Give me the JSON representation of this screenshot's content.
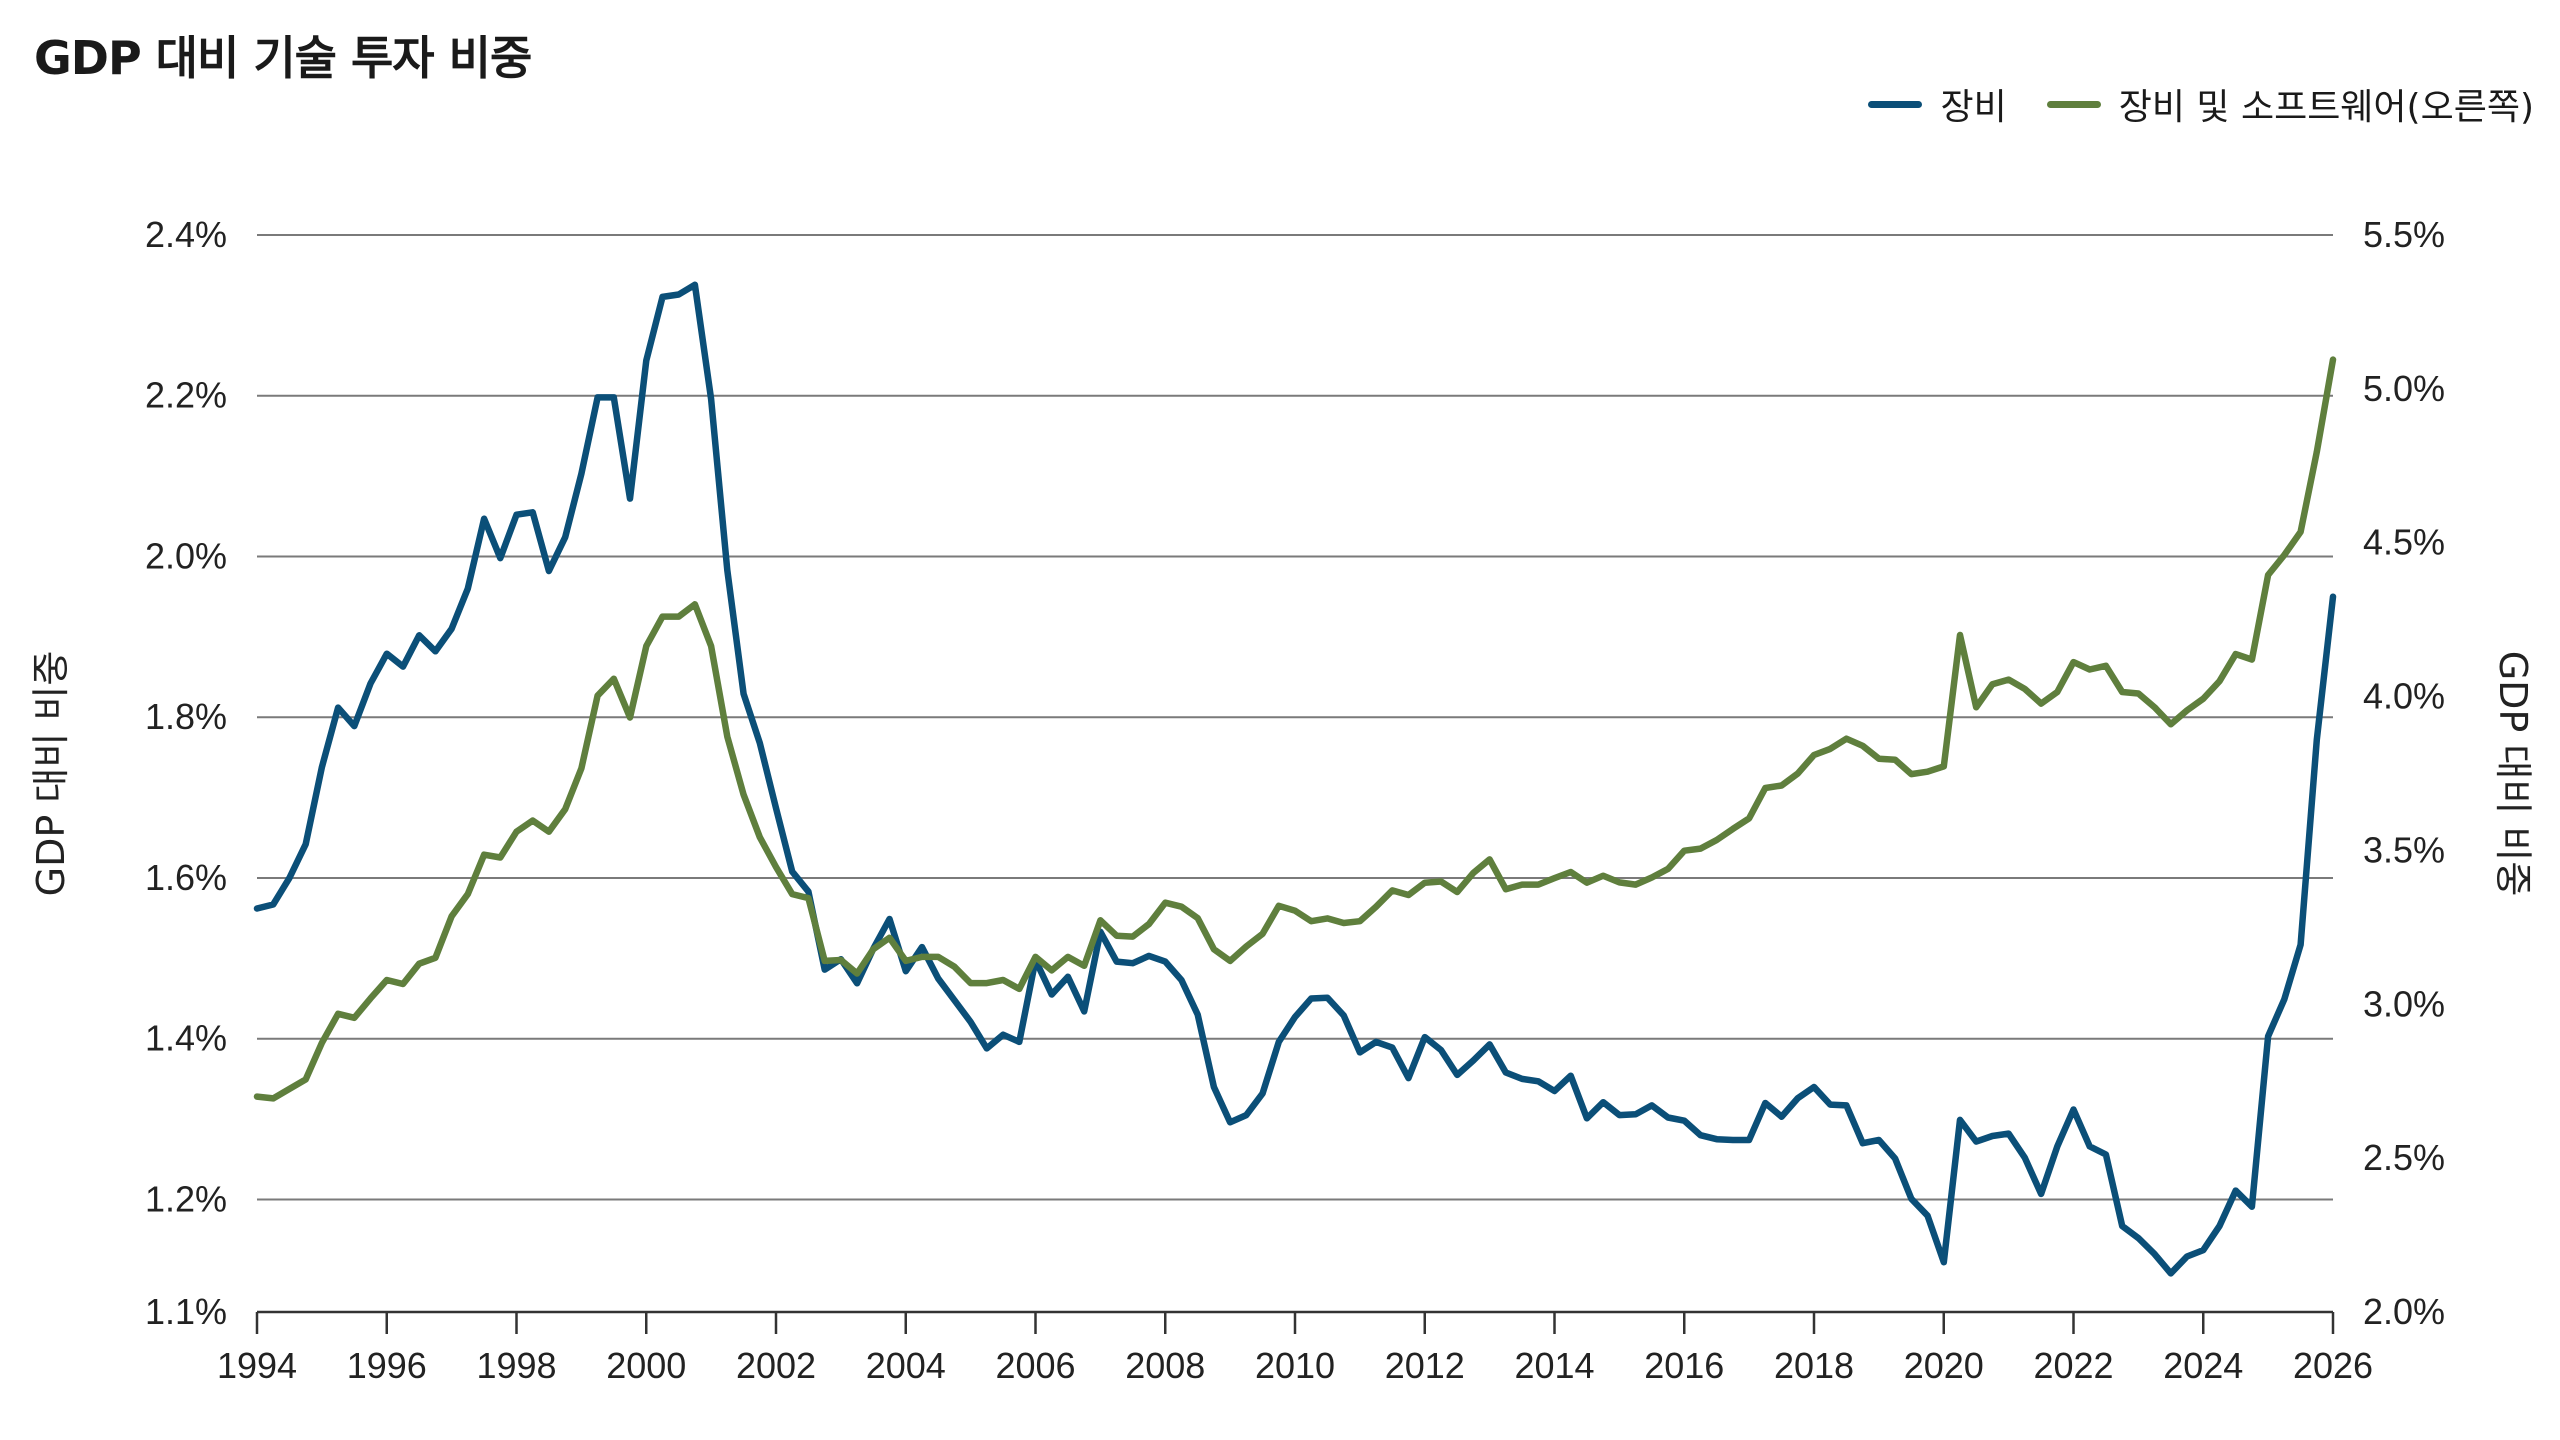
{
  "chart_data": {
    "type": "line",
    "title": "GDP 대비 기술 투자 비중",
    "ylabel_left": "GDP 대비 비중",
    "ylabel_right": "GDP 대비 비중",
    "x_ticks": [
      "1994",
      "1996",
      "1998",
      "2000",
      "2002",
      "2004",
      "2006",
      "2008",
      "2010",
      "2012",
      "2014",
      "2016",
      "2018",
      "2020",
      "2022",
      "2024",
      "2026"
    ],
    "xlim": [
      1994,
      2026
    ],
    "left_axis": {
      "ticks": [
        "1.1%",
        "1.2%",
        "1.4%",
        "1.6%",
        "1.8%",
        "2.0%",
        "2.2%",
        "2.4%"
      ],
      "tick_values": [
        1.06,
        1.2,
        1.4,
        1.6,
        1.8,
        2.0,
        2.2,
        2.4
      ],
      "ylim": [
        1.06,
        2.4
      ]
    },
    "right_axis": {
      "ticks": [
        "2.0%",
        "2.5%",
        "3.0%",
        "3.5%",
        "4.0%",
        "4.5%",
        "5.0%",
        "5.5%"
      ],
      "tick_values": [
        2.0,
        2.5,
        3.0,
        3.5,
        4.0,
        4.5,
        5.0,
        5.5
      ],
      "ylim": [
        2.0,
        5.5
      ]
    },
    "grid": true,
    "legend_position": "top-right",
    "series": [
      {
        "name": "장비",
        "axis": "left",
        "color": "#0b4f78",
        "points": [
          [
            1994.0,
            1.562
          ],
          [
            1994.25,
            1.567
          ],
          [
            1994.5,
            1.6
          ],
          [
            1994.75,
            1.642
          ],
          [
            1995.0,
            1.738
          ],
          [
            1995.25,
            1.812
          ],
          [
            1995.5,
            1.789
          ],
          [
            1995.75,
            1.842
          ],
          [
            1996.0,
            1.879
          ],
          [
            1996.25,
            1.863
          ],
          [
            1996.5,
            1.902
          ],
          [
            1996.75,
            1.882
          ],
          [
            1997.0,
            1.91
          ],
          [
            1997.25,
            1.96
          ],
          [
            1997.5,
            2.047
          ],
          [
            1997.75,
            1.998
          ],
          [
            1998.0,
            2.052
          ],
          [
            1998.25,
            2.055
          ],
          [
            1998.5,
            1.982
          ],
          [
            1998.75,
            2.024
          ],
          [
            1999.0,
            2.103
          ],
          [
            1999.25,
            2.198
          ],
          [
            1999.5,
            2.198
          ],
          [
            1999.75,
            2.072
          ],
          [
            2000.0,
            2.244
          ],
          [
            2000.25,
            2.323
          ],
          [
            2000.5,
            2.326
          ],
          [
            2000.75,
            2.338
          ],
          [
            2001.0,
            2.196
          ],
          [
            2001.25,
            1.983
          ],
          [
            2001.5,
            1.829
          ],
          [
            2001.75,
            1.768
          ],
          [
            2002.0,
            1.687
          ],
          [
            2002.25,
            1.608
          ],
          [
            2002.5,
            1.583
          ],
          [
            2002.75,
            1.486
          ],
          [
            2003.0,
            1.499
          ],
          [
            2003.25,
            1.469
          ],
          [
            2003.5,
            1.512
          ],
          [
            2003.75,
            1.549
          ],
          [
            2004.0,
            1.484
          ],
          [
            2004.25,
            1.514
          ],
          [
            2004.5,
            1.475
          ],
          [
            2004.75,
            1.448
          ],
          [
            2005.0,
            1.421
          ],
          [
            2005.25,
            1.388
          ],
          [
            2005.5,
            1.405
          ],
          [
            2005.75,
            1.396
          ],
          [
            2006.0,
            1.498
          ],
          [
            2006.25,
            1.455
          ],
          [
            2006.5,
            1.477
          ],
          [
            2006.75,
            1.434
          ],
          [
            2007.0,
            1.533
          ],
          [
            2007.25,
            1.496
          ],
          [
            2007.5,
            1.494
          ],
          [
            2007.75,
            1.503
          ],
          [
            2008.0,
            1.496
          ],
          [
            2008.25,
            1.473
          ],
          [
            2008.5,
            1.43
          ],
          [
            2008.75,
            1.34
          ],
          [
            2009.0,
            1.296
          ],
          [
            2009.25,
            1.305
          ],
          [
            2009.5,
            1.332
          ],
          [
            2009.75,
            1.396
          ],
          [
            2010.0,
            1.427
          ],
          [
            2010.25,
            1.45
          ],
          [
            2010.5,
            1.451
          ],
          [
            2010.75,
            1.429
          ],
          [
            2011.0,
            1.383
          ],
          [
            2011.25,
            1.396
          ],
          [
            2011.5,
            1.389
          ],
          [
            2011.75,
            1.351
          ],
          [
            2012.0,
            1.402
          ],
          [
            2012.25,
            1.386
          ],
          [
            2012.5,
            1.355
          ],
          [
            2012.75,
            1.373
          ],
          [
            2013.0,
            1.393
          ],
          [
            2013.25,
            1.358
          ],
          [
            2013.5,
            1.35
          ],
          [
            2013.75,
            1.347
          ],
          [
            2014.0,
            1.335
          ],
          [
            2014.25,
            1.354
          ],
          [
            2014.5,
            1.301
          ],
          [
            2014.75,
            1.321
          ],
          [
            2015.0,
            1.305
          ],
          [
            2015.25,
            1.306
          ],
          [
            2015.5,
            1.317
          ],
          [
            2015.75,
            1.302
          ],
          [
            2016.0,
            1.298
          ],
          [
            2016.25,
            1.28
          ],
          [
            2016.5,
            1.275
          ],
          [
            2016.75,
            1.274
          ],
          [
            2017.0,
            1.274
          ],
          [
            2017.25,
            1.32
          ],
          [
            2017.5,
            1.303
          ],
          [
            2017.75,
            1.326
          ],
          [
            2018.0,
            1.34
          ],
          [
            2018.25,
            1.318
          ],
          [
            2018.5,
            1.317
          ],
          [
            2018.75,
            1.27
          ],
          [
            2019.0,
            1.274
          ],
          [
            2019.25,
            1.251
          ],
          [
            2019.5,
            1.201
          ],
          [
            2019.75,
            1.18
          ],
          [
            2020.0,
            1.122
          ],
          [
            2020.25,
            1.299
          ],
          [
            2020.5,
            1.272
          ],
          [
            2020.75,
            1.279
          ],
          [
            2021.0,
            1.282
          ],
          [
            2021.25,
            1.252
          ],
          [
            2021.5,
            1.207
          ],
          [
            2021.75,
            1.266
          ],
          [
            2022.0,
            1.312
          ],
          [
            2022.25,
            1.266
          ],
          [
            2022.5,
            1.256
          ],
          [
            2022.75,
            1.167
          ],
          [
            2023.0,
            1.152
          ],
          [
            2023.25,
            1.132
          ],
          [
            2023.5,
            1.108
          ],
          [
            2023.75,
            1.129
          ],
          [
            2024.0,
            1.137
          ],
          [
            2024.25,
            1.167
          ],
          [
            2024.5,
            1.211
          ],
          [
            2024.75,
            1.191
          ],
          [
            2025.0,
            1.403
          ],
          [
            2025.25,
            1.449
          ],
          [
            2025.5,
            1.517
          ],
          [
            2025.75,
            1.772
          ],
          [
            2026.0,
            1.95
          ]
        ]
      },
      {
        "name": "장비 및 소프트웨어(오른쪽)",
        "axis": "right",
        "color": "#5f7f3d",
        "points": [
          [
            1994.0,
            2.7
          ],
          [
            1994.25,
            2.694
          ],
          [
            1994.5,
            2.725
          ],
          [
            1994.75,
            2.756
          ],
          [
            1995.0,
            2.875
          ],
          [
            1995.25,
            2.969
          ],
          [
            1995.5,
            2.956
          ],
          [
            1995.75,
            3.019
          ],
          [
            1996.0,
            3.079
          ],
          [
            1996.25,
            3.066
          ],
          [
            1996.5,
            3.132
          ],
          [
            1996.75,
            3.151
          ],
          [
            1997.0,
            3.286
          ],
          [
            1997.25,
            3.358
          ],
          [
            1997.5,
            3.486
          ],
          [
            1997.75,
            3.477
          ],
          [
            1998.0,
            3.561
          ],
          [
            1998.25,
            3.597
          ],
          [
            1998.5,
            3.561
          ],
          [
            1998.75,
            3.634
          ],
          [
            1999.0,
            3.767
          ],
          [
            1999.25,
            4.003
          ],
          [
            1999.5,
            4.058
          ],
          [
            1999.75,
            3.932
          ],
          [
            2000.0,
            4.164
          ],
          [
            2000.25,
            4.26
          ],
          [
            2000.5,
            4.26
          ],
          [
            2000.75,
            4.3
          ],
          [
            2001.0,
            4.164
          ],
          [
            2001.25,
            3.87
          ],
          [
            2001.5,
            3.681
          ],
          [
            2001.75,
            3.543
          ],
          [
            2002.0,
            3.446
          ],
          [
            2002.25,
            3.358
          ],
          [
            2002.5,
            3.345
          ],
          [
            2002.75,
            3.141
          ],
          [
            2003.0,
            3.144
          ],
          [
            2003.25,
            3.1
          ],
          [
            2003.5,
            3.179
          ],
          [
            2003.75,
            3.216
          ],
          [
            2004.0,
            3.141
          ],
          [
            2004.25,
            3.154
          ],
          [
            2004.5,
            3.154
          ],
          [
            2004.75,
            3.122
          ],
          [
            2005.0,
            3.069
          ],
          [
            2005.25,
            3.069
          ],
          [
            2005.5,
            3.079
          ],
          [
            2005.75,
            3.05
          ],
          [
            2006.0,
            3.154
          ],
          [
            2006.25,
            3.11
          ],
          [
            2006.5,
            3.154
          ],
          [
            2006.75,
            3.125
          ],
          [
            2007.0,
            3.273
          ],
          [
            2007.25,
            3.223
          ],
          [
            2007.5,
            3.22
          ],
          [
            2007.75,
            3.261
          ],
          [
            2008.0,
            3.33
          ],
          [
            2008.25,
            3.317
          ],
          [
            2008.5,
            3.28
          ],
          [
            2008.75,
            3.179
          ],
          [
            2009.0,
            3.141
          ],
          [
            2009.25,
            3.188
          ],
          [
            2009.5,
            3.229
          ],
          [
            2009.75,
            3.32
          ],
          [
            2010.0,
            3.304
          ],
          [
            2010.25,
            3.27
          ],
          [
            2010.5,
            3.279
          ],
          [
            2010.75,
            3.264
          ],
          [
            2011.0,
            3.27
          ],
          [
            2011.25,
            3.317
          ],
          [
            2011.5,
            3.37
          ],
          [
            2011.75,
            3.355
          ],
          [
            2012.0,
            3.395
          ],
          [
            2012.25,
            3.399
          ],
          [
            2012.5,
            3.365
          ],
          [
            2012.75,
            3.427
          ],
          [
            2013.0,
            3.471
          ],
          [
            2013.25,
            3.374
          ],
          [
            2013.5,
            3.389
          ],
          [
            2013.75,
            3.389
          ],
          [
            2014.0,
            3.41
          ],
          [
            2014.25,
            3.43
          ],
          [
            2014.5,
            3.395
          ],
          [
            2014.75,
            3.418
          ],
          [
            2015.0,
            3.396
          ],
          [
            2015.25,
            3.389
          ],
          [
            2015.5,
            3.412
          ],
          [
            2015.75,
            3.44
          ],
          [
            2016.0,
            3.499
          ],
          [
            2016.25,
            3.506
          ],
          [
            2016.5,
            3.534
          ],
          [
            2016.75,
            3.57
          ],
          [
            2017.0,
            3.604
          ],
          [
            2017.25,
            3.703
          ],
          [
            2017.5,
            3.711
          ],
          [
            2017.75,
            3.75
          ],
          [
            2018.0,
            3.81
          ],
          [
            2018.25,
            3.83
          ],
          [
            2018.5,
            3.863
          ],
          [
            2018.75,
            3.84
          ],
          [
            2019.0,
            3.798
          ],
          [
            2019.25,
            3.795
          ],
          [
            2019.5,
            3.748
          ],
          [
            2019.75,
            3.756
          ],
          [
            2020.0,
            3.773
          ],
          [
            2020.25,
            4.2
          ],
          [
            2020.5,
            3.965
          ],
          [
            2020.75,
            4.04
          ],
          [
            2021.0,
            4.055
          ],
          [
            2021.25,
            4.025
          ],
          [
            2021.5,
            3.977
          ],
          [
            2021.75,
            4.015
          ],
          [
            2022.0,
            4.112
          ],
          [
            2022.25,
            4.088
          ],
          [
            2022.5,
            4.1
          ],
          [
            2022.75,
            4.015
          ],
          [
            2023.0,
            4.01
          ],
          [
            2023.25,
            3.965
          ],
          [
            2023.5,
            3.91
          ],
          [
            2023.75,
            3.955
          ],
          [
            2024.0,
            3.993
          ],
          [
            2024.25,
            4.05
          ],
          [
            2024.5,
            4.138
          ],
          [
            2024.75,
            4.12
          ],
          [
            2025.0,
            4.395
          ],
          [
            2025.25,
            4.46
          ],
          [
            2025.5,
            4.535
          ],
          [
            2025.75,
            4.795
          ],
          [
            2026.0,
            5.095
          ]
        ]
      }
    ]
  }
}
